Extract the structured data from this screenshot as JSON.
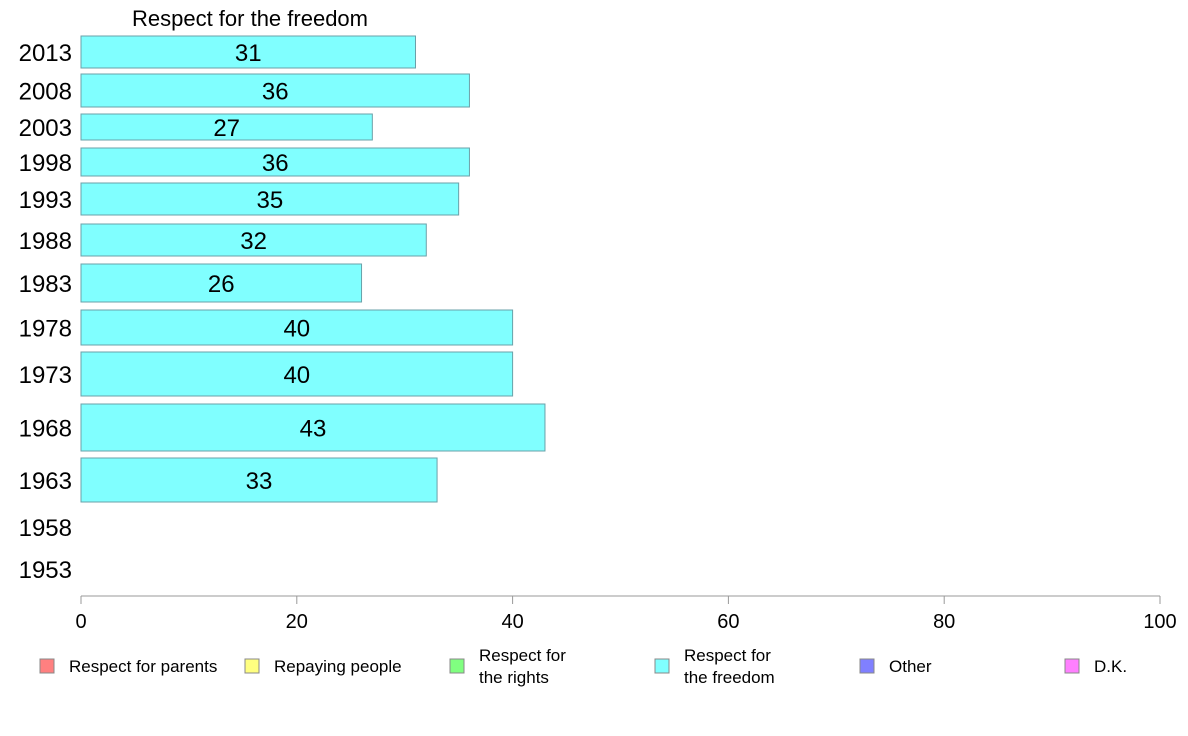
{
  "chart_data": {
    "type": "bar",
    "orientation": "horizontal",
    "title": "Respect for the freedom",
    "categories": [
      "2013",
      "2008",
      "2003",
      "1998",
      "1993",
      "1988",
      "1983",
      "1978",
      "1973",
      "1968",
      "1963",
      "1958",
      "1953"
    ],
    "series": [
      {
        "name": "Respect for the freedom",
        "color": "#80ffff",
        "values": [
          31,
          36,
          27,
          36,
          35,
          32,
          26,
          40,
          40,
          43,
          33,
          null,
          null
        ]
      }
    ],
    "xlim": [
      0,
      100
    ],
    "xticks": [
      "0",
      "20",
      "40",
      "60",
      "80",
      "100"
    ],
    "grid": false,
    "legend_position": "bottom"
  },
  "legend": [
    {
      "lines": [
        "Respect for parents"
      ],
      "color": "#ff8080"
    },
    {
      "lines": [
        "Repaying people"
      ],
      "color": "#ffff80"
    },
    {
      "lines": [
        "Respect for",
        "the rights"
      ],
      "color": "#80ff80"
    },
    {
      "lines": [
        "Respect for",
        "the freedom"
      ],
      "color": "#80ffff"
    },
    {
      "lines": [
        "Other"
      ],
      "color": "#8080ff"
    },
    {
      "lines": [
        "D.K."
      ],
      "color": "#ff80ff"
    }
  ]
}
